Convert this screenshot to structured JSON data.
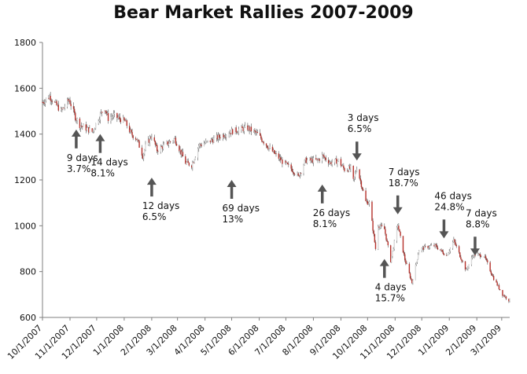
{
  "chart_data": {
    "type": "candlestick",
    "title": "Bear Market Rallies 2007-2009",
    "xlabel": "",
    "ylabel": "",
    "ylim": [
      600,
      1800
    ],
    "yticks": [
      600,
      800,
      1000,
      1200,
      1400,
      1600,
      1800
    ],
    "xdomain": [
      "2007-10-01",
      "2009-03-10"
    ],
    "xticks": [
      {
        "date": "2007-10-01",
        "label": "10/1/2007"
      },
      {
        "date": "2007-11-01",
        "label": "11/1/2007"
      },
      {
        "date": "2007-12-01",
        "label": "12/1/2007"
      },
      {
        "date": "2008-01-01",
        "label": "1/1/2008"
      },
      {
        "date": "2008-02-01",
        "label": "2/1/2008"
      },
      {
        "date": "2008-03-01",
        "label": "3/1/2008"
      },
      {
        "date": "2008-04-01",
        "label": "4/1/2008"
      },
      {
        "date": "2008-05-01",
        "label": "5/1/2008"
      },
      {
        "date": "2008-06-01",
        "label": "6/1/2008"
      },
      {
        "date": "2008-07-01",
        "label": "7/1/2008"
      },
      {
        "date": "2008-08-01",
        "label": "8/1/2008"
      },
      {
        "date": "2008-09-01",
        "label": "9/1/2008"
      },
      {
        "date": "2008-10-01",
        "label": "10/1/2008"
      },
      {
        "date": "2008-11-01",
        "label": "11/1/2008"
      },
      {
        "date": "2008-12-01",
        "label": "12/1/2008"
      },
      {
        "date": "2009-01-01",
        "label": "1/1/2009"
      },
      {
        "date": "2009-02-01",
        "label": "2/1/2009"
      },
      {
        "date": "2009-03-01",
        "label": "3/1/2009"
      }
    ],
    "price_path": [
      [
        "2007-10-01",
        1540
      ],
      [
        "2007-10-09",
        1565
      ],
      [
        "2007-10-22",
        1500
      ],
      [
        "2007-10-31",
        1550
      ],
      [
        "2007-11-07",
        1475
      ],
      [
        "2007-11-12",
        1440
      ],
      [
        "2007-11-26",
        1410
      ],
      [
        "2007-12-05",
        1485
      ],
      [
        "2007-12-10",
        1515
      ],
      [
        "2007-12-14",
        1468
      ],
      [
        "2007-12-20",
        1480
      ],
      [
        "2008-01-02",
        1455
      ],
      [
        "2008-01-09",
        1400
      ],
      [
        "2008-01-15",
        1380
      ],
      [
        "2008-01-22",
        1305
      ],
      [
        "2008-01-25",
        1345
      ],
      [
        "2008-02-01",
        1395
      ],
      [
        "2008-02-07",
        1330
      ],
      [
        "2008-02-15",
        1350
      ],
      [
        "2008-02-27",
        1380
      ],
      [
        "2008-03-10",
        1275
      ],
      [
        "2008-03-17",
        1265
      ],
      [
        "2008-03-25",
        1350
      ],
      [
        "2008-04-07",
        1370
      ],
      [
        "2008-04-18",
        1390
      ],
      [
        "2008-05-02",
        1413
      ],
      [
        "2008-05-19",
        1427
      ],
      [
        "2008-05-30",
        1400
      ],
      [
        "2008-06-12",
        1340
      ],
      [
        "2008-06-27",
        1280
      ],
      [
        "2008-07-07",
        1250
      ],
      [
        "2008-07-15",
        1215
      ],
      [
        "2008-07-23",
        1285
      ],
      [
        "2008-08-06",
        1285
      ],
      [
        "2008-08-11",
        1305
      ],
      [
        "2008-08-20",
        1275
      ],
      [
        "2008-08-29",
        1285
      ],
      [
        "2008-09-05",
        1245
      ],
      [
        "2008-09-12",
        1250
      ],
      [
        "2008-09-15",
        1195
      ],
      [
        "2008-09-19",
        1255
      ],
      [
        "2008-09-29",
        1105
      ],
      [
        "2008-10-03",
        1100
      ],
      [
        "2008-10-10",
        900
      ],
      [
        "2008-10-13",
        1003
      ],
      [
        "2008-10-20",
        985
      ],
      [
        "2008-10-27",
        848
      ],
      [
        "2008-11-04",
        1005
      ],
      [
        "2008-11-12",
        852
      ],
      [
        "2008-11-20",
        752
      ],
      [
        "2008-11-28",
        896
      ],
      [
        "2008-12-08",
        909
      ],
      [
        "2008-12-16",
        913
      ],
      [
        "2008-12-29",
        870
      ],
      [
        "2009-01-06",
        935
      ],
      [
        "2009-01-20",
        805
      ],
      [
        "2009-01-28",
        874
      ],
      [
        "2009-02-09",
        870
      ],
      [
        "2009-02-20",
        770
      ],
      [
        "2009-03-02",
        700
      ],
      [
        "2009-03-09",
        676
      ]
    ],
    "annotations": [
      {
        "label": "9 days",
        "pct": "3.7%",
        "arrow_date": "2007-11-08",
        "arrow_value": 1420,
        "direction": "up"
      },
      {
        "label": "14 days",
        "pct": "8.1%",
        "arrow_date": "2007-12-05",
        "arrow_value": 1400,
        "direction": "up"
      },
      {
        "label": "12 days",
        "pct": "6.5%",
        "arrow_date": "2008-02-01",
        "arrow_value": 1210,
        "direction": "up"
      },
      {
        "label": "69 days",
        "pct": "13%",
        "arrow_date": "2008-05-01",
        "arrow_value": 1200,
        "direction": "up"
      },
      {
        "label": "26 days",
        "pct": "8.1%",
        "arrow_date": "2008-08-11",
        "arrow_value": 1180,
        "direction": "up"
      },
      {
        "label": "3 days",
        "pct": "6.5%",
        "arrow_date": "2008-09-19",
        "arrow_value": 1285,
        "direction": "down"
      },
      {
        "label": "7 days",
        "pct": "18.7%",
        "arrow_date": "2008-11-04",
        "arrow_value": 1050,
        "direction": "down"
      },
      {
        "label": "4 days",
        "pct": "15.7%",
        "arrow_date": "2008-10-20",
        "arrow_value": 855,
        "direction": "up"
      },
      {
        "label": "46 days",
        "pct": "24.8%",
        "arrow_date": "2008-12-26",
        "arrow_value": 945,
        "direction": "down"
      },
      {
        "label": "7 days",
        "pct": "8.8%",
        "arrow_date": "2009-01-30",
        "arrow_value": 870,
        "direction": "down"
      }
    ]
  },
  "colors": {
    "candle_down": "#b5302a",
    "candle_up": "#d8d8d8",
    "wick": "#555555",
    "arrow": "#555555",
    "axis": "#7f7f7f"
  }
}
